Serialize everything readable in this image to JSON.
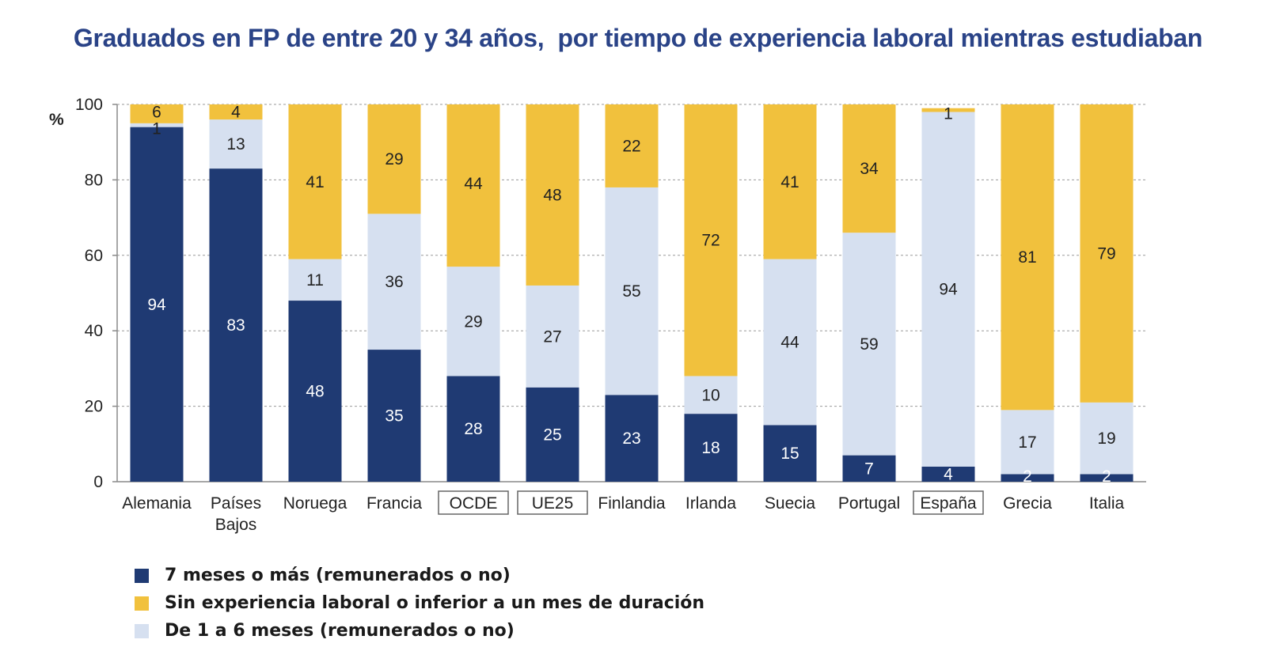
{
  "chart_data": {
    "type": "bar",
    "stacked": true,
    "title": "Graduados en FP de entre 20 y 34 años,  por tiempo de experiencia laboral mientras estudiaban",
    "ylabel": "%",
    "ylim": [
      0,
      100
    ],
    "yticks": [
      "0",
      "20",
      "40",
      "60",
      "80",
      "100"
    ],
    "grid": true,
    "legend_position": "bottom-left",
    "categories": [
      "Alemania",
      "Países Bajos",
      "Noruega",
      "Francia",
      "OCDE",
      "UE25",
      "Finlandia",
      "Irlanda",
      "Suecia",
      "Portugal",
      "España",
      "Grecia",
      "Italia"
    ],
    "boxed_categories": [
      "OCDE",
      "UE25",
      "España"
    ],
    "series": [
      {
        "name": "7 meses o más (remunerados o no)",
        "color": "#1f3a73",
        "values": [
          94,
          83,
          48,
          35,
          28,
          25,
          23,
          18,
          15,
          7,
          4,
          2,
          2
        ]
      },
      {
        "name": "De 1 a 6 meses (remunerados o no)",
        "color": "#d6e0f0",
        "values": [
          1,
          13,
          11,
          36,
          29,
          27,
          55,
          10,
          44,
          59,
          94,
          17,
          19
        ]
      },
      {
        "name": "Sin experiencia laboral o inferior a un mes de duración",
        "color": "#f1c13d",
        "values": [
          6,
          4,
          41,
          29,
          44,
          48,
          22,
          72,
          41,
          34,
          1,
          81,
          79
        ]
      }
    ],
    "legend_order": [
      "7 meses o más (remunerados o no)",
      "Sin experiencia laboral o inferior a un mes de duración",
      "De 1 a 6 meses (remunerados o no)"
    ]
  },
  "legend": [
    {
      "label": "7 meses o más (remunerados o no)",
      "color": "#1f3a73"
    },
    {
      "label": "Sin experiencia laboral o inferior a un mes de duración",
      "color": "#f1c13d"
    },
    {
      "label": "De 1 a 6 meses (remunerados o no)",
      "color": "#d6e0f0"
    }
  ]
}
